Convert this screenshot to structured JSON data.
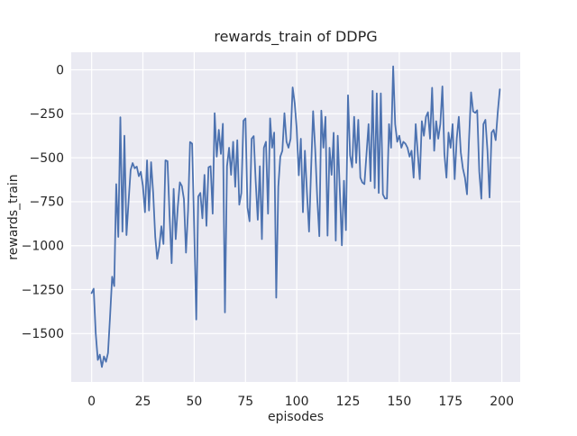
{
  "figure": {
    "background": "#ffffff"
  },
  "chart_data": {
    "type": "line",
    "title": "rewards_train of DDPG",
    "xlabel": "episodes",
    "ylabel": "rewards_train",
    "legend": "none",
    "grid": true,
    "axes_bg": "#EAEAF2",
    "grid_color": "#FFFFFF",
    "line_color": "#4C72B0",
    "text_color": "#262626",
    "xlim": [
      -9.95,
      208.95
    ],
    "ylim": [
      -1775,
      100
    ],
    "x_ticks": [
      0,
      25,
      50,
      75,
      100,
      125,
      150,
      175,
      200
    ],
    "y_ticks": [
      0,
      -250,
      -500,
      -750,
      -1000,
      -1250,
      -1500
    ],
    "x_tick_labels": [
      "0",
      "25",
      "50",
      "75",
      "100",
      "125",
      "150",
      "175",
      "200"
    ],
    "y_tick_labels": [
      "0",
      "−250",
      "−500",
      "−750",
      "−1000",
      "−1250",
      "−1500"
    ],
    "series": [
      {
        "name": "rewards_train",
        "x_start": 0,
        "x_step": 1,
        "values": [
          -1270,
          -1245,
          -1500,
          -1650,
          -1620,
          -1690,
          -1630,
          -1660,
          -1610,
          -1400,
          -1176,
          -1230,
          -650,
          -950,
          -270,
          -920,
          -375,
          -940,
          -750,
          -570,
          -530,
          -560,
          -550,
          -605,
          -580,
          -660,
          -810,
          -515,
          -800,
          -525,
          -700,
          -950,
          -1075,
          -1005,
          -890,
          -990,
          -515,
          -520,
          -830,
          -1100,
          -677,
          -963,
          -780,
          -640,
          -660,
          -735,
          -1040,
          -800,
          -410,
          -420,
          -900,
          -1420,
          -720,
          -700,
          -844,
          -597,
          -887,
          -554,
          -548,
          -818,
          -247,
          -494,
          -341,
          -478,
          -307,
          -1380,
          -548,
          -443,
          -597,
          -409,
          -665,
          -400,
          -767,
          -700,
          -290,
          -276,
          -782,
          -861,
          -392,
          -377,
          -633,
          -853,
          -548,
          -963,
          -443,
          -409,
          -818,
          -276,
          -443,
          -357,
          -1296,
          -665,
          -494,
          -460,
          -247,
          -409,
          -443,
          -392,
          -100,
          -190,
          -335,
          -600,
          -392,
          -810,
          -460,
          -700,
          -920,
          -560,
          -235,
          -450,
          -733,
          -946,
          -232,
          -443,
          -267,
          -943,
          -443,
          -597,
          -358,
          -971,
          -375,
          -683,
          -998,
          -631,
          -912,
          -145,
          -486,
          -554,
          -267,
          -529,
          -284,
          -613,
          -641,
          -650,
          -480,
          -309,
          -633,
          -120,
          -673,
          -134,
          -700,
          -134,
          -708,
          -732,
          -732,
          -309,
          -443,
          20,
          -309,
          -409,
          -375,
          -443,
          -409,
          -420,
          -443,
          -494,
          -460,
          -613,
          -309,
          -477,
          -622,
          -292,
          -375,
          -267,
          -241,
          -392,
          -102,
          -460,
          -292,
          -392,
          -309,
          -94,
          -477,
          -613,
          -357,
          -443,
          -309,
          -622,
          -392,
          -267,
          -469,
          -560,
          -613,
          -708,
          -400,
          -128,
          -236,
          -245,
          -230,
          -580,
          -733,
          -309,
          -284,
          -460,
          -726,
          -357,
          -341,
          -400,
          -241,
          -111
        ]
      }
    ]
  }
}
